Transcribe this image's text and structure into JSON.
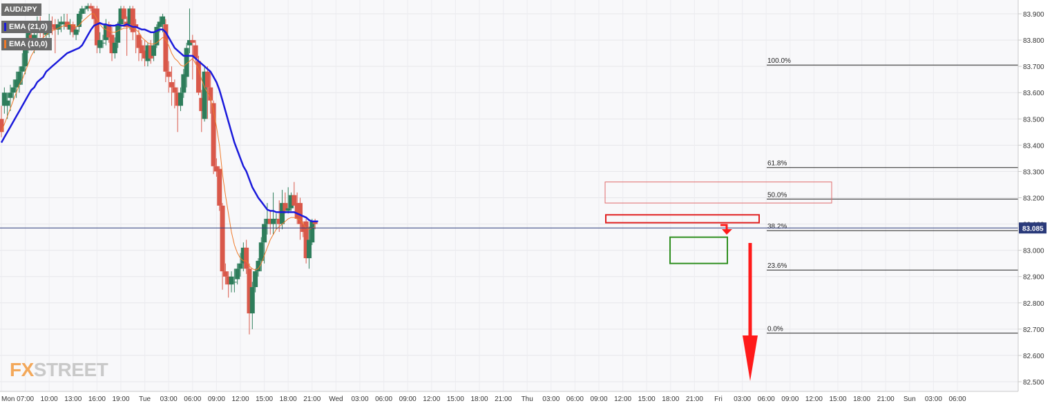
{
  "symbol": "AUD/JPY",
  "indicators": [
    {
      "label": "EMA (21,0)",
      "color": "#1a1adb"
    },
    {
      "label": "EMA (10,0)",
      "color": "#f07a2a"
    }
  ],
  "logo": {
    "fx": "FX",
    "street": "STREET"
  },
  "colors": {
    "up": "#2e7d5b",
    "down": "#d9584a",
    "ema21": "#1a1adb",
    "ema10": "#f07a2a",
    "resistance": "#e02020",
    "support": "#2f8f1f",
    "arrow": "#ff1a1a",
    "price_line": "#2a3a7a"
  },
  "chart_data": {
    "type": "candlestick",
    "title": "AUD/JPY",
    "y_axis": {
      "min": 82.5,
      "max": 83.9,
      "ticks": [
        "83.900",
        "83.800",
        "83.700",
        "83.600",
        "83.500",
        "83.400",
        "83.300",
        "83.200",
        "83.100",
        "83.000",
        "82.900",
        "82.800",
        "82.700",
        "82.600",
        "82.500"
      ]
    },
    "x_axis": {
      "ticks": [
        "Mon",
        "07:00",
        "10:00",
        "13:00",
        "16:00",
        "19:00",
        "Tue",
        "03:00",
        "06:00",
        "09:00",
        "12:00",
        "15:00",
        "18:00",
        "21:00",
        "Wed",
        "03:00",
        "06:00",
        "09:00",
        "12:00",
        "15:00",
        "18:00",
        "21:00",
        "Thu",
        "03:00",
        "06:00",
        "09:00",
        "12:00",
        "15:00",
        "18:00",
        "21:00",
        "Fri",
        "03:00",
        "06:00",
        "09:00",
        "12:00",
        "15:00",
        "18:00",
        "21:00",
        "Sun",
        "03:00",
        "06:00"
      ]
    },
    "current_price": {
      "value": 83.085,
      "label": "83.085"
    },
    "fibonacci": [
      {
        "label": "100.0%",
        "price": 83.705
      },
      {
        "label": "61.8%",
        "price": 83.315
      },
      {
        "label": "50.0%",
        "price": 83.195
      },
      {
        "label": "38.2%",
        "price": 83.075
      },
      {
        "label": "23.6%",
        "price": 82.925
      },
      {
        "label": "0.0%",
        "price": 82.685
      }
    ],
    "zones": [
      {
        "type": "resistance-upper",
        "from": 83.26,
        "to": 83.18
      },
      {
        "type": "resistance",
        "from": 83.135,
        "to": 83.105
      },
      {
        "type": "support",
        "from": 83.05,
        "to": 82.95
      }
    ],
    "candles": [
      [
        83.5,
        83.55,
        83.43,
        83.45
      ],
      [
        83.55,
        83.62,
        83.52,
        83.6
      ],
      [
        83.55,
        83.6,
        83.5,
        83.57
      ],
      [
        83.58,
        83.63,
        83.53,
        83.6
      ],
      [
        83.6,
        83.65,
        83.57,
        83.62
      ],
      [
        83.62,
        83.68,
        83.58,
        83.65
      ],
      [
        83.63,
        83.7,
        83.6,
        83.68
      ],
      [
        83.68,
        83.75,
        83.63,
        83.7
      ],
      [
        83.7,
        83.8,
        83.67,
        83.77
      ],
      [
        83.77,
        83.85,
        83.75,
        83.83
      ],
      [
        83.82,
        83.86,
        83.76,
        83.78
      ],
      [
        83.78,
        83.86,
        83.75,
        83.82
      ],
      [
        83.83,
        83.89,
        83.79,
        83.87
      ],
      [
        83.86,
        83.89,
        83.81,
        83.84
      ],
      [
        83.84,
        83.87,
        83.8,
        83.83
      ],
      [
        83.82,
        83.86,
        83.8,
        83.84
      ],
      [
        83.83,
        83.9,
        83.81,
        83.86
      ],
      [
        83.86,
        83.89,
        83.82,
        83.85
      ],
      [
        83.86,
        83.88,
        83.75,
        83.84
      ],
      [
        83.84,
        83.88,
        83.82,
        83.86
      ],
      [
        83.86,
        83.89,
        83.83,
        83.87
      ],
      [
        83.86,
        83.9,
        83.84,
        83.87
      ],
      [
        83.87,
        83.9,
        83.84,
        83.85
      ],
      [
        83.84,
        83.88,
        83.82,
        83.86
      ],
      [
        83.86,
        83.87,
        83.81,
        83.83
      ],
      [
        83.82,
        83.85,
        83.8,
        83.84
      ],
      [
        83.85,
        83.91,
        83.83,
        83.9
      ],
      [
        83.9,
        83.93,
        83.88,
        83.92
      ],
      [
        83.92,
        83.93,
        83.9,
        83.92
      ],
      [
        83.92,
        83.94,
        83.91,
        83.93
      ],
      [
        83.93,
        83.94,
        83.91,
        83.92
      ],
      [
        83.92,
        83.93,
        83.85,
        83.88
      ],
      [
        83.92,
        83.93,
        83.75,
        83.78
      ],
      [
        83.77,
        83.83,
        83.75,
        83.8
      ],
      [
        83.79,
        83.82,
        83.77,
        83.79
      ],
      [
        83.8,
        83.88,
        83.78,
        83.86
      ],
      [
        83.86,
        83.87,
        83.79,
        83.81
      ],
      [
        83.82,
        83.85,
        83.72,
        83.75
      ],
      [
        83.75,
        83.81,
        83.73,
        83.79
      ],
      [
        83.79,
        83.87,
        83.77,
        83.86
      ],
      [
        83.86,
        83.93,
        83.84,
        83.92
      ],
      [
        83.92,
        83.93,
        83.85,
        83.88
      ],
      [
        83.87,
        83.89,
        83.74,
        83.85
      ],
      [
        83.86,
        83.93,
        83.84,
        83.92
      ],
      [
        83.92,
        83.93,
        83.8,
        83.83
      ],
      [
        83.86,
        83.88,
        83.75,
        83.85
      ],
      [
        83.82,
        83.84,
        83.72,
        83.77
      ],
      [
        83.78,
        83.8,
        83.72,
        83.75
      ],
      [
        83.76,
        83.8,
        83.7,
        83.73
      ],
      [
        83.72,
        83.79,
        83.7,
        83.78
      ],
      [
        83.78,
        83.8,
        83.71,
        83.73
      ],
      [
        83.74,
        83.83,
        83.72,
        83.78
      ],
      [
        83.78,
        83.86,
        83.77,
        83.85
      ],
      [
        83.85,
        83.89,
        83.83,
        83.87
      ],
      [
        83.86,
        83.9,
        83.83,
        83.89
      ],
      [
        83.86,
        83.88,
        83.64,
        83.68
      ],
      [
        83.68,
        83.72,
        83.6,
        83.66
      ],
      [
        83.64,
        83.7,
        83.55,
        83.62
      ],
      [
        83.62,
        83.65,
        83.54,
        83.6
      ],
      [
        83.6,
        83.62,
        83.45,
        83.55
      ],
      [
        83.55,
        83.62,
        83.53,
        83.6
      ],
      [
        83.6,
        83.69,
        83.58,
        83.67
      ],
      [
        83.66,
        83.79,
        83.62,
        83.77
      ],
      [
        83.78,
        83.92,
        83.75,
        83.8
      ],
      [
        83.8,
        83.82,
        83.65,
        83.79
      ],
      [
        83.78,
        83.8,
        83.71,
        83.73
      ],
      [
        83.72,
        83.74,
        83.59,
        83.6
      ],
      [
        83.58,
        83.61,
        83.45,
        83.53
      ],
      [
        83.5,
        83.7,
        83.49,
        83.68
      ],
      [
        83.68,
        83.7,
        83.5,
        83.62
      ],
      [
        83.62,
        83.68,
        83.52,
        83.57
      ],
      [
        83.56,
        83.57,
        83.29,
        83.32
      ],
      [
        83.32,
        83.35,
        83.28,
        83.3
      ],
      [
        83.31,
        83.32,
        83.15,
        83.17
      ],
      [
        83.17,
        83.18,
        82.85,
        82.92
      ],
      [
        82.92,
        82.95,
        82.87,
        82.9
      ],
      [
        82.9,
        82.92,
        82.82,
        82.87
      ],
      [
        82.87,
        82.92,
        82.84,
        82.9
      ],
      [
        82.88,
        82.93,
        82.84,
        82.88
      ],
      [
        82.89,
        82.95,
        82.87,
        82.93
      ],
      [
        82.93,
        82.99,
        82.9,
        82.95
      ],
      [
        82.95,
        83.03,
        82.92,
        83.01
      ],
      [
        83.01,
        83.04,
        82.91,
        82.93
      ],
      [
        82.93,
        82.95,
        82.68,
        82.76
      ],
      [
        82.76,
        82.88,
        82.7,
        82.86
      ],
      [
        82.86,
        82.93,
        82.84,
        82.92
      ],
      [
        82.92,
        82.97,
        82.9,
        82.96
      ],
      [
        82.96,
        83.05,
        82.92,
        83.03
      ],
      [
        83.03,
        83.12,
        82.95,
        83.1
      ],
      [
        83.1,
        83.18,
        83.06,
        83.12
      ],
      [
        83.12,
        83.15,
        83.06,
        83.1
      ],
      [
        83.1,
        83.22,
        83.06,
        83.12
      ],
      [
        83.12,
        83.14,
        83.08,
        83.12
      ],
      [
        83.12,
        83.19,
        83.07,
        83.1
      ],
      [
        83.1,
        83.23,
        83.08,
        83.18
      ],
      [
        83.18,
        83.22,
        83.14,
        83.15
      ],
      [
        83.15,
        83.24,
        83.14,
        83.16
      ],
      [
        83.16,
        83.22,
        83.15,
        83.21
      ],
      [
        83.21,
        83.26,
        83.18,
        83.17
      ],
      [
        83.18,
        83.22,
        83.1,
        83.12
      ],
      [
        83.18,
        83.2,
        83.04,
        83.1
      ],
      [
        83.1,
        83.11,
        83.05,
        83.07
      ],
      [
        83.11,
        83.12,
        82.95,
        82.97
      ],
      [
        82.97,
        83.09,
        82.93,
        83.04
      ],
      [
        83.03,
        83.12,
        83.02,
        83.11
      ],
      [
        83.11,
        83.12,
        83.08,
        83.1
      ]
    ],
    "ema21": [
      83.41,
      83.43,
      83.45,
      83.47,
      83.49,
      83.51,
      83.53,
      83.55,
      83.57,
      83.59,
      83.61,
      83.62,
      83.64,
      83.65,
      83.66,
      83.68,
      83.69,
      83.7,
      83.71,
      83.72,
      83.73,
      83.74,
      83.75,
      83.755,
      83.76,
      83.765,
      83.77,
      83.78,
      83.8,
      83.82,
      83.84,
      83.855,
      83.86,
      83.865,
      83.86,
      83.86,
      83.855,
      83.855,
      83.855,
      83.86,
      83.855,
      83.855,
      83.86,
      83.855,
      83.85,
      83.85,
      83.845,
      83.84,
      83.84,
      83.835,
      83.83,
      83.83,
      83.835,
      83.84,
      83.84,
      83.83,
      83.81,
      83.79,
      83.77,
      83.76,
      83.75,
      83.74,
      83.74,
      83.74,
      83.74,
      83.73,
      83.72,
      83.71,
      83.7,
      83.69,
      83.68,
      83.66,
      83.64,
      83.61,
      83.57,
      83.53,
      83.49,
      83.45,
      83.41,
      83.38,
      83.35,
      83.32,
      83.3,
      83.27,
      83.24,
      83.22,
      83.2,
      83.185,
      83.17,
      83.155,
      83.15,
      83.15,
      83.145,
      83.145,
      83.145,
      83.145,
      83.145,
      83.145,
      83.145,
      83.14,
      83.135,
      83.13,
      83.125,
      83.115,
      83.11,
      83.11,
      83.11
    ],
    "ema10": [
      83.45,
      83.48,
      83.51,
      83.54,
      83.57,
      83.6,
      83.63,
      83.65,
      83.68,
      83.71,
      83.74,
      83.76,
      83.78,
      83.8,
      83.81,
      83.82,
      83.83,
      83.835,
      83.84,
      83.845,
      83.85,
      83.855,
      83.86,
      83.86,
      83.855,
      83.85,
      83.855,
      83.87,
      83.88,
      83.89,
      83.9,
      83.9,
      83.88,
      83.86,
      83.845,
      83.84,
      83.835,
      83.83,
      83.83,
      83.835,
      83.84,
      83.845,
      83.845,
      83.85,
      83.845,
      83.84,
      83.83,
      83.81,
      83.8,
      83.79,
      83.785,
      83.785,
      83.79,
      83.8,
      83.81,
      83.8,
      83.78,
      83.75,
      83.73,
      83.72,
      83.705,
      83.7,
      83.71,
      83.72,
      83.73,
      83.71,
      83.69,
      83.65,
      83.62,
      83.6,
      83.58,
      83.53,
      83.47,
      83.4,
      83.29,
      83.21,
      83.14,
      83.07,
      83.02,
      82.99,
      82.97,
      82.96,
      82.96,
      82.94,
      82.93,
      82.925,
      82.93,
      82.95,
      82.98,
      83.01,
      83.04,
      83.06,
      83.08,
      83.09,
      83.1,
      83.11,
      83.12,
      83.125,
      83.125,
      83.12,
      83.115,
      83.1,
      83.085,
      83.08,
      83.085,
      83.09
    ]
  }
}
